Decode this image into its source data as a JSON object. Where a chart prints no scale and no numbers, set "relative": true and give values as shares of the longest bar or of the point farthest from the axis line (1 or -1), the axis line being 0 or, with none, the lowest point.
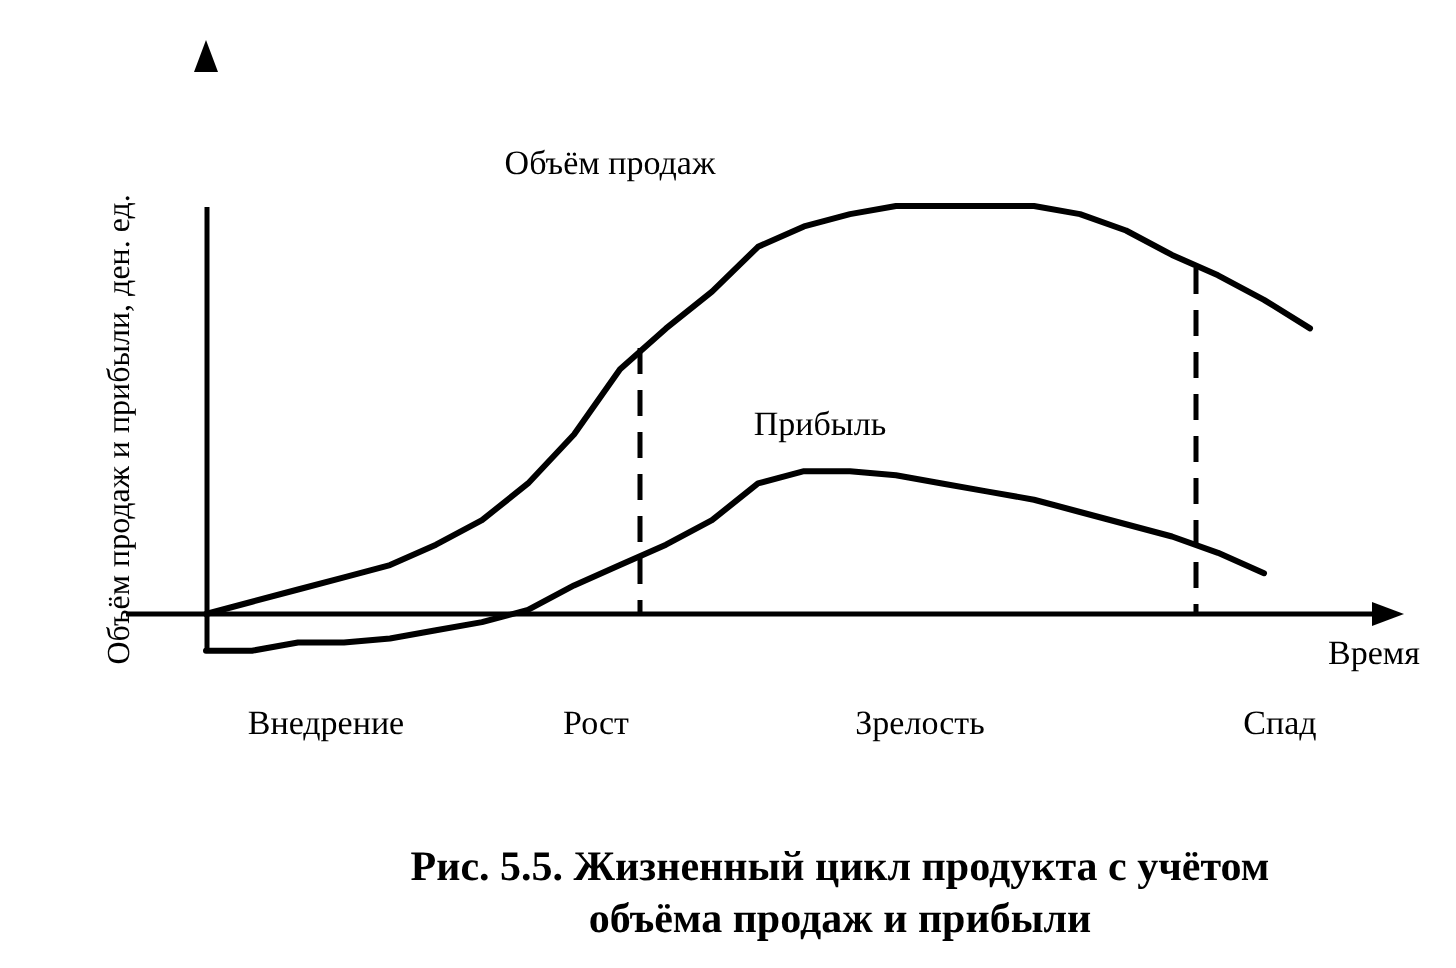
{
  "chart_data": {
    "type": "line",
    "relative": true,
    "title": "Рис. 5.5. Жизненный цикл продукта с учётом объёма продаж и прибыли",
    "xlabel": "Время",
    "ylabel": "Объём продаж и прибыли, ден. ед.",
    "line_style": "solid",
    "categories": [
      null,
      null,
      null,
      null,
      null,
      null,
      null,
      null,
      null,
      null,
      null,
      null,
      null,
      null,
      null,
      null,
      null,
      null,
      null,
      null,
      null,
      null,
      null,
      null,
      null
    ],
    "series": [
      {
        "name": "Объём продаж",
        "color": "#000000",
        "values": [
          0,
          0.03,
          0.06,
          0.09,
          0.12,
          0.17,
          0.23,
          0.32,
          0.44,
          0.6,
          0.7,
          0.79,
          0.9,
          0.95,
          0.98,
          1.0,
          1.0,
          1.0,
          1.0,
          0.98,
          0.94,
          0.88,
          0.83,
          0.77,
          0.7
        ]
      },
      {
        "name": "Прибыль",
        "color": "#000000",
        "values": [
          -0.09,
          -0.09,
          -0.07,
          -0.07,
          -0.06,
          -0.04,
          -0.02,
          0.01,
          0.07,
          0.12,
          0.17,
          0.23,
          0.32,
          0.35,
          0.35,
          0.34,
          0.32,
          0.3,
          0.28,
          0.25,
          0.22,
          0.19,
          0.15,
          0.1,
          null
        ]
      }
    ],
    "annotations": [
      "Внедрение",
      "Рост",
      "Зрелость",
      "Спад"
    ]
  }
}
